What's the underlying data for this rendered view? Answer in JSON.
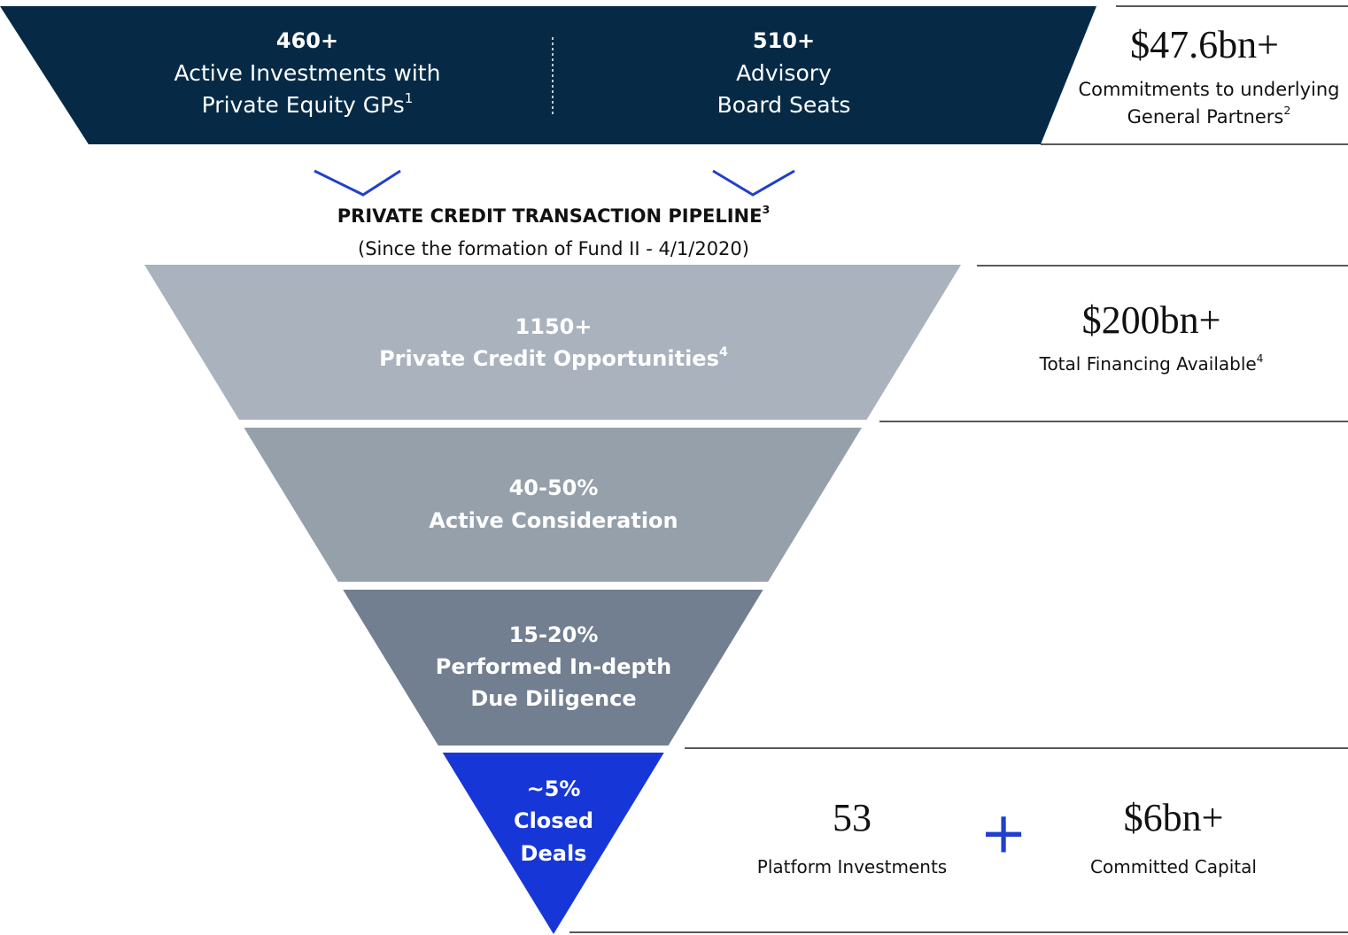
{
  "top_band": {
    "items": [
      {
        "value": "460+",
        "lines": [
          {
            "text": "Active Investments with"
          },
          {
            "text": "Private Equity GPs",
            "sup": "1"
          }
        ]
      },
      {
        "value": "510+",
        "lines": [
          {
            "text": "Advisory"
          },
          {
            "text": "Board Seats"
          }
        ]
      }
    ],
    "stat": {
      "value": "$47.6bn+",
      "lines": [
        {
          "text": "Commitments to underlying"
        },
        {
          "text": "General Partners",
          "sup": "2"
        }
      ]
    }
  },
  "pipeline": {
    "title": {
      "text": "PRIVATE CREDIT TRANSACTION PIPELINE",
      "sup": "3"
    },
    "subtitle": "(Since the formation of Fund II - 4/1/2020)"
  },
  "funnel": {
    "stages": [
      {
        "color": "#a9b2bd",
        "lines": [
          {
            "text": "1150+"
          },
          {
            "text": "Private Credit Opportunities",
            "sup": "4"
          }
        ]
      },
      {
        "color": "#95a0ab",
        "lines": [
          {
            "text": "40-50%"
          },
          {
            "text": "Active Consideration"
          }
        ]
      },
      {
        "color": "#727f90",
        "lines": [
          {
            "text": "15-20%"
          },
          {
            "text": "Performed In-depth"
          },
          {
            "text": "Due Diligence"
          }
        ]
      },
      {
        "color": "#1736d8",
        "lines": [
          {
            "text": "~5%"
          },
          {
            "text": "Closed"
          },
          {
            "text": "Deals"
          }
        ]
      }
    ]
  },
  "side_stats": {
    "financing": {
      "value": "$200bn+",
      "lines": [
        {
          "text": "Total Financing Available",
          "sup": "4"
        }
      ]
    },
    "platform": {
      "value": "53",
      "lines": [
        {
          "text": "Platform Investments"
        }
      ]
    },
    "plus": "+",
    "capital": {
      "value": "$6bn+",
      "lines": [
        {
          "text": "Committed Capital"
        }
      ]
    }
  }
}
